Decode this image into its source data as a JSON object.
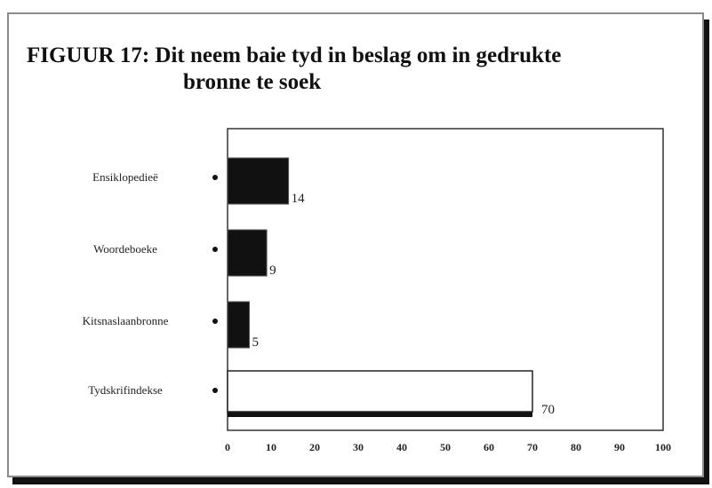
{
  "chart_data": {
    "type": "bar",
    "orientation": "horizontal",
    "title_line1": "FIGUUR 17: Dit neem baie tyd in beslag om in gedrukte",
    "title_line2": "bronne te soek",
    "categories": [
      "Ensiklopedieë",
      "Woordeboeke",
      "Kitsnaslaanbronne",
      "Tydskrifindekse"
    ],
    "values": [
      14,
      9,
      5,
      70
    ],
    "data_labels": [
      "14",
      "9",
      "5",
      "70"
    ],
    "xlim": [
      0,
      100
    ],
    "xticks": [
      0,
      10,
      20,
      30,
      40,
      50,
      60,
      70,
      80,
      90,
      100
    ],
    "grid": false,
    "legend": "none",
    "colors": {
      "bar_fill": "#111111",
      "highlight_bar_fill": "#ffffff",
      "axis": "#333333",
      "text": "#222222"
    }
  }
}
